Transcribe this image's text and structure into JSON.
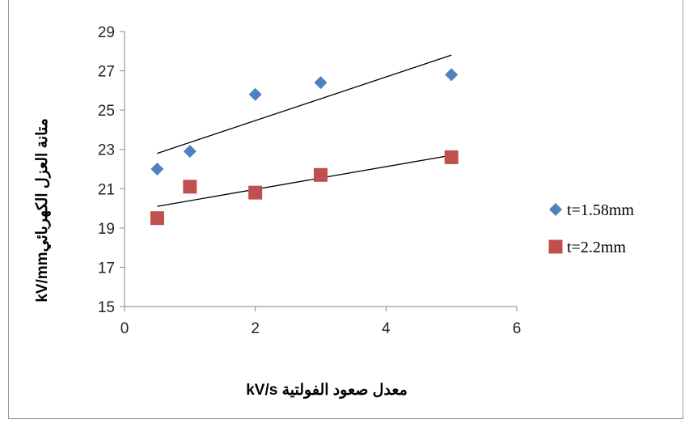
{
  "chart_data": {
    "type": "scatter",
    "xlabel": "kV/s معدل صعود الفولتية",
    "ylabel": "kV/mmمتانة العزل الكهربائي",
    "xlim": [
      0,
      6
    ],
    "ylim": [
      15,
      29
    ],
    "xticks": [
      "0",
      "2",
      "4",
      "6"
    ],
    "yticks": [
      "15",
      "17",
      "19",
      "21",
      "23",
      "25",
      "27",
      "29"
    ],
    "grid": false,
    "legend_position": "right",
    "series": [
      {
        "name": "t=1.58mm",
        "marker": "diamond",
        "color": "#4f81bd",
        "points": [
          [
            0.5,
            22.0
          ],
          [
            1,
            22.9
          ],
          [
            2,
            25.8
          ],
          [
            3,
            26.4
          ],
          [
            5,
            26.8
          ]
        ],
        "trendline": [
          [
            0.5,
            22.8
          ],
          [
            5,
            27.8
          ]
        ]
      },
      {
        "name": "t=2.2mm",
        "marker": "square",
        "color": "#c0504d",
        "points": [
          [
            0.5,
            19.5
          ],
          [
            1,
            21.1
          ],
          [
            2,
            20.8
          ],
          [
            3,
            21.7
          ],
          [
            5,
            22.6
          ]
        ],
        "trendline": [
          [
            0.5,
            20.1
          ],
          [
            5,
            22.7
          ]
        ]
      }
    ],
    "trendline_color": "#000000"
  }
}
